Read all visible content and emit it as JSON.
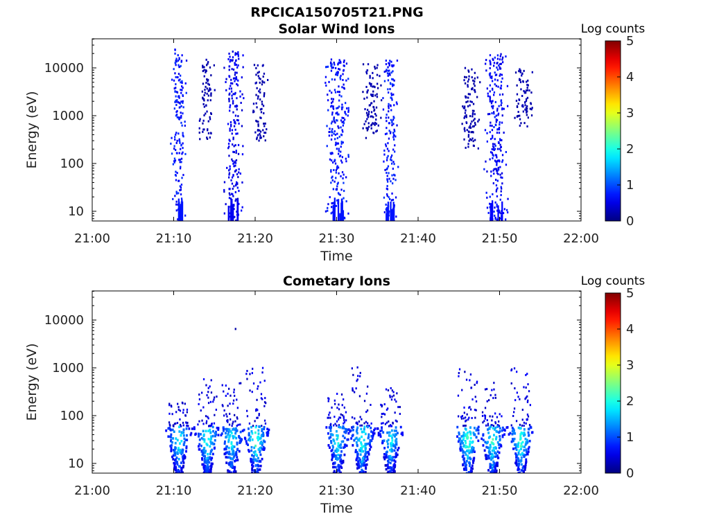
{
  "figure": {
    "title": "RPCICA150705T21.PNG"
  },
  "chart_data": [
    {
      "type": "heatmap",
      "title": "Solar Wind Ions",
      "xlabel": "Time",
      "ylabel": "Energy (eV)",
      "x_ticks": [
        "21:00",
        "21:10",
        "21:20",
        "21:30",
        "21:40",
        "21:50",
        "22:00"
      ],
      "xlim": [
        "21:00",
        "22:00"
      ],
      "y_scale": "log",
      "y_ticks": [
        "10",
        "100",
        "1000",
        "10000"
      ],
      "ylim": [
        6,
        45000
      ],
      "colorbar": {
        "label": "Log counts",
        "range": [
          0,
          5
        ],
        "ticks": [
          "0",
          "1",
          "2",
          "3",
          "4",
          "5"
        ],
        "colormap": "jet"
      },
      "bursts": [
        {
          "t_start": "21:09:30",
          "t_end": "21:11:30",
          "e_min": 6,
          "e_max": 25000,
          "peak_log_counts": 0.9
        },
        {
          "t_start": "21:13:00",
          "t_end": "21:15:00",
          "e_min": 300,
          "e_max": 15000,
          "peak_log_counts": 0.3
        },
        {
          "t_start": "21:16:00",
          "t_end": "21:18:30",
          "e_min": 6,
          "e_max": 22000,
          "peak_log_counts": 0.7
        },
        {
          "t_start": "21:19:30",
          "t_end": "21:21:30",
          "e_min": 300,
          "e_max": 12000,
          "peak_log_counts": 0.3
        },
        {
          "t_start": "21:28:30",
          "t_end": "21:31:30",
          "e_min": 6,
          "e_max": 15000,
          "peak_log_counts": 0.9
        },
        {
          "t_start": "21:33:00",
          "t_end": "21:35:30",
          "e_min": 300,
          "e_max": 12000,
          "peak_log_counts": 0.3
        },
        {
          "t_start": "21:35:30",
          "t_end": "21:37:30",
          "e_min": 6,
          "e_max": 15000,
          "peak_log_counts": 0.9
        },
        {
          "t_start": "21:45:00",
          "t_end": "21:47:30",
          "e_min": 200,
          "e_max": 10000,
          "peak_log_counts": 0.3
        },
        {
          "t_start": "21:48:00",
          "t_end": "21:51:00",
          "e_min": 6,
          "e_max": 20000,
          "peak_log_counts": 0.8
        },
        {
          "t_start": "21:51:30",
          "t_end": "21:54:00",
          "e_min": 500,
          "e_max": 10000,
          "peak_log_counts": 0.3
        }
      ]
    },
    {
      "type": "heatmap",
      "title": "Cometary Ions",
      "xlabel": "Time",
      "ylabel": "Energy (eV)",
      "x_ticks": [
        "21:00",
        "21:10",
        "21:20",
        "21:30",
        "21:40",
        "21:50",
        "22:00"
      ],
      "xlim": [
        "21:00",
        "22:00"
      ],
      "y_scale": "log",
      "y_ticks": [
        "10",
        "100",
        "1000",
        "10000"
      ],
      "ylim": [
        6,
        45000
      ],
      "colorbar": {
        "label": "Log counts",
        "range": [
          0,
          5
        ],
        "ticks": [
          "0",
          "1",
          "2",
          "3",
          "4",
          "5"
        ],
        "colormap": "jet"
      },
      "bursts": [
        {
          "t_center": "21:10:30",
          "e_core": 30,
          "e_max": 200,
          "peak_log_counts": 2.3
        },
        {
          "t_center": "21:14:00",
          "e_core": 30,
          "e_max": 600,
          "peak_log_counts": 2.5
        },
        {
          "t_center": "21:17:00",
          "e_core": 30,
          "e_max": 500,
          "peak_log_counts": 2.3
        },
        {
          "t_center": "21:20:00",
          "e_core": 30,
          "e_max": 1000,
          "peak_log_counts": 2.6
        },
        {
          "t_center": "21:30:00",
          "e_core": 30,
          "e_max": 300,
          "peak_log_counts": 2.3
        },
        {
          "t_center": "21:33:00",
          "e_core": 30,
          "e_max": 1100,
          "peak_log_counts": 2.5
        },
        {
          "t_center": "21:36:30",
          "e_core": 30,
          "e_max": 400,
          "peak_log_counts": 2.2
        },
        {
          "t_center": "21:46:00",
          "e_core": 30,
          "e_max": 1000,
          "peak_log_counts": 2.7
        },
        {
          "t_center": "21:49:00",
          "e_core": 30,
          "e_max": 500,
          "peak_log_counts": 2.5
        },
        {
          "t_center": "21:52:30",
          "e_core": 30,
          "e_max": 1200,
          "peak_log_counts": 2.6
        }
      ],
      "outliers": [
        {
          "t": "21:17:30",
          "e": 6500,
          "log_counts": 0.2
        }
      ]
    }
  ]
}
